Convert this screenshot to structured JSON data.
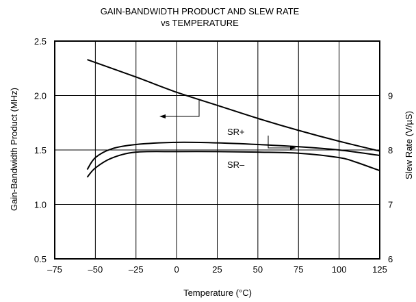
{
  "chart_data": {
    "type": "line",
    "title": "GAIN-BANDWIDTH PRODUCT AND SLEW RATE",
    "subtitle": "vs TEMPERATURE",
    "xlabel": "Temperature (°C)",
    "ylabel": "Gain-Bandwidth Product (MHz)",
    "y2label": "Slew Rate (V/µS)",
    "xlim": [
      -75,
      125
    ],
    "ylim": [
      0.5,
      2.5
    ],
    "y2lim": [
      6,
      10
    ],
    "grid": true,
    "x_ticks": [
      -75,
      -50,
      -25,
      0,
      25,
      50,
      75,
      100,
      125
    ],
    "x_tick_labels": [
      "–75",
      "–50",
      "–25",
      "0",
      "25",
      "50",
      "75",
      "100",
      "125"
    ],
    "y_ticks": [
      0.5,
      1.0,
      1.5,
      2.0,
      2.5
    ],
    "y_tick_labels": [
      "0.5",
      "1.0",
      "1.5",
      "2.0",
      "2.5"
    ],
    "y2_ticks": [
      6,
      7,
      8,
      9
    ],
    "y2_tick_labels": [
      "6",
      "7",
      "8",
      "9"
    ],
    "series": [
      {
        "key": "gbw",
        "axis": "left",
        "x": [
          -55,
          -25,
          0,
          25,
          50,
          75,
          100,
          125
        ],
        "y": [
          2.33,
          2.17,
          2.03,
          1.91,
          1.79,
          1.68,
          1.58,
          1.49
        ]
      },
      {
        "key": "sr_plus",
        "name": "SR+",
        "axis": "right",
        "x": [
          -55,
          -50,
          -40,
          -25,
          0,
          25,
          50,
          75,
          100,
          125
        ],
        "y": [
          7.64,
          7.86,
          8.02,
          8.1,
          8.14,
          8.13,
          8.1,
          8.06,
          8.0,
          7.9
        ]
      },
      {
        "key": "sr_minus",
        "name": "SR–",
        "axis": "right",
        "x": [
          -55,
          -50,
          -40,
          -25,
          0,
          25,
          50,
          75,
          100,
          110,
          125
        ],
        "y": [
          7.5,
          7.67,
          7.85,
          7.96,
          7.97,
          7.97,
          7.96,
          7.94,
          7.86,
          7.78,
          7.62
        ]
      }
    ],
    "annotations": {
      "sr_plus_label": "SR+",
      "sr_minus_label": "SR–"
    }
  }
}
